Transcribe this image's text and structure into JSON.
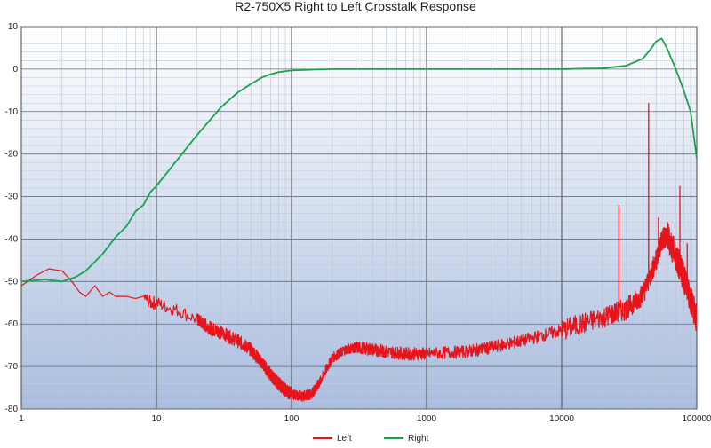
{
  "chart_data": {
    "type": "line",
    "title": "R2-750X5 Right to Left Crosstalk Response",
    "xlabel": "",
    "ylabel": "",
    "x_scale": "log",
    "xlim": [
      1,
      100000
    ],
    "ylim": [
      -80,
      10
    ],
    "x_ticks": [
      1,
      10,
      100,
      1000,
      10000,
      100000
    ],
    "x_tick_labels": [
      "1",
      "10",
      "100",
      "1000",
      "10000",
      "100000"
    ],
    "y_ticks": [
      10,
      0,
      -10,
      -20,
      -30,
      -40,
      -50,
      -60,
      -70,
      -80
    ],
    "y_tick_labels": [
      "10",
      "0",
      "-10",
      "-20",
      "-30",
      "-40",
      "-50",
      "-60",
      "-70",
      "-80"
    ],
    "grid": true,
    "legend_position": "bottom-center",
    "series": [
      {
        "name": "Left",
        "color": "#e8141c",
        "x": [
          1,
          1.3,
          1.6,
          2,
          2.3,
          2.7,
          3,
          3.5,
          4,
          4.5,
          5,
          6,
          7,
          8,
          9,
          10,
          12,
          15,
          20,
          25,
          30,
          40,
          50,
          60,
          70,
          80,
          90,
          100,
          120,
          140,
          160,
          200,
          250,
          300,
          400,
          500,
          700,
          1000,
          2000,
          3000,
          5000,
          10000,
          20000,
          30000,
          40000,
          50000,
          55000,
          60000,
          70000,
          80000,
          90000,
          100000
        ],
        "y": [
          -51,
          -48.5,
          -47,
          -47.5,
          -49.5,
          -52.5,
          -53.5,
          -51,
          -53.5,
          -52.5,
          -53.5,
          -53.5,
          -54,
          -53.5,
          -55,
          -55,
          -56,
          -57,
          -59,
          -61,
          -62,
          -64,
          -66,
          -69,
          -72,
          -74,
          -75.5,
          -76.5,
          -77,
          -76.5,
          -74,
          -68,
          -66,
          -65.5,
          -66,
          -66.5,
          -67,
          -67,
          -66.5,
          -65.5,
          -64,
          -61.5,
          -58.5,
          -56.5,
          -53,
          -45,
          -40.5,
          -39,
          -44,
          -49,
          -54,
          -59
        ]
      },
      {
        "name": "Right",
        "color": "#16a34a",
        "x": [
          1,
          1.5,
          2,
          2.5,
          3,
          4,
          5,
          6,
          7,
          8,
          9,
          10,
          15,
          20,
          30,
          40,
          50,
          60,
          70,
          80,
          100,
          150,
          200,
          500,
          1000,
          5000,
          10000,
          20000,
          30000,
          40000,
          45000,
          50000,
          55000,
          60000,
          70000,
          80000,
          90000,
          100000
        ],
        "y": [
          -50,
          -49.5,
          -50,
          -49,
          -47.5,
          -43.5,
          -39.5,
          -37,
          -33.5,
          -32,
          -29,
          -27.5,
          -20.5,
          -15.5,
          -9,
          -5.5,
          -3.5,
          -2,
          -1.2,
          -0.7,
          -0.3,
          -0.1,
          0,
          0,
          0,
          0,
          0,
          0.2,
          0.8,
          2.5,
          4.5,
          6.5,
          7.2,
          5,
          0,
          -5,
          -10,
          -21
        ]
      }
    ],
    "spikes": [
      {
        "series": "Left",
        "x": 26500,
        "y": -32
      },
      {
        "series": "Left",
        "x": 44000,
        "y": -8
      },
      {
        "series": "Left",
        "x": 52000,
        "y": -35
      },
      {
        "series": "Left",
        "x": 75000,
        "y": -27.5
      },
      {
        "series": "Left",
        "x": 85000,
        "y": -41
      },
      {
        "series": "Left",
        "x": 92000,
        "y": -52
      }
    ]
  }
}
